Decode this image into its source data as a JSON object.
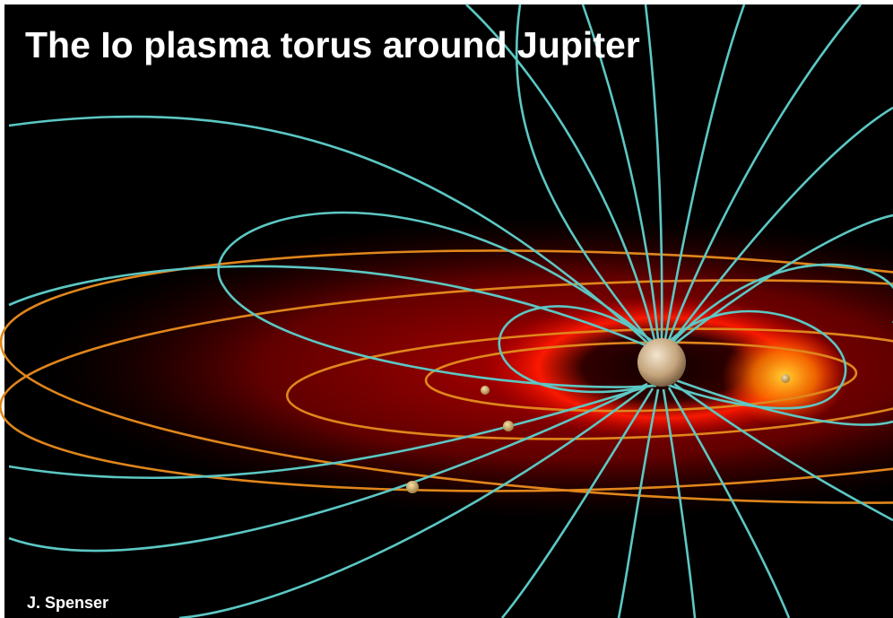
{
  "title": "The Io plasma torus around Jupiter",
  "credit": "J. Spenser"
}
